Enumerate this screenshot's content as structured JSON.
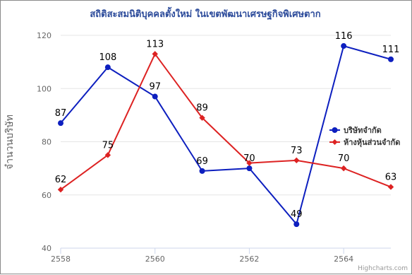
{
  "chart_data": {
    "type": "line",
    "title": "สถิติสะสมนิติบุคคลตั้งใหม่ ในเขตพัฒนาเศรษฐกิจพิเศษตาก",
    "xlabel": "",
    "ylabel": "จำนวนบริษัท",
    "x": [
      2558,
      2559,
      2560,
      2561,
      2562,
      2563,
      2564,
      2565
    ],
    "xticks": [
      "2558",
      "2560",
      "2562",
      "2564"
    ],
    "yticks": [
      "40",
      "60",
      "80",
      "100",
      "120"
    ],
    "xlim": [
      2558,
      2565
    ],
    "ylim": [
      40,
      120
    ],
    "grid": true,
    "legend_position": "right",
    "series": [
      {
        "name": "บริษัทจำกัด",
        "color": "#0d1fbf",
        "marker": "circle",
        "values": [
          87,
          108,
          97,
          69,
          70,
          49,
          116,
          111
        ]
      },
      {
        "name": "ห้างหุ้นส่วนจำกัด",
        "color": "#dd2222",
        "marker": "diamond",
        "values": [
          62,
          75,
          113,
          89,
          72,
          73,
          70,
          63
        ]
      }
    ],
    "data_labels": [
      [
        "87",
        "108",
        "97",
        "69",
        "70",
        "49",
        "116",
        "111"
      ],
      [
        "62",
        "75",
        "113",
        "89",
        "",
        "73",
        "70",
        "63"
      ]
    ],
    "title_color": "#2b4a9a",
    "credits": "Highcharts.com"
  }
}
